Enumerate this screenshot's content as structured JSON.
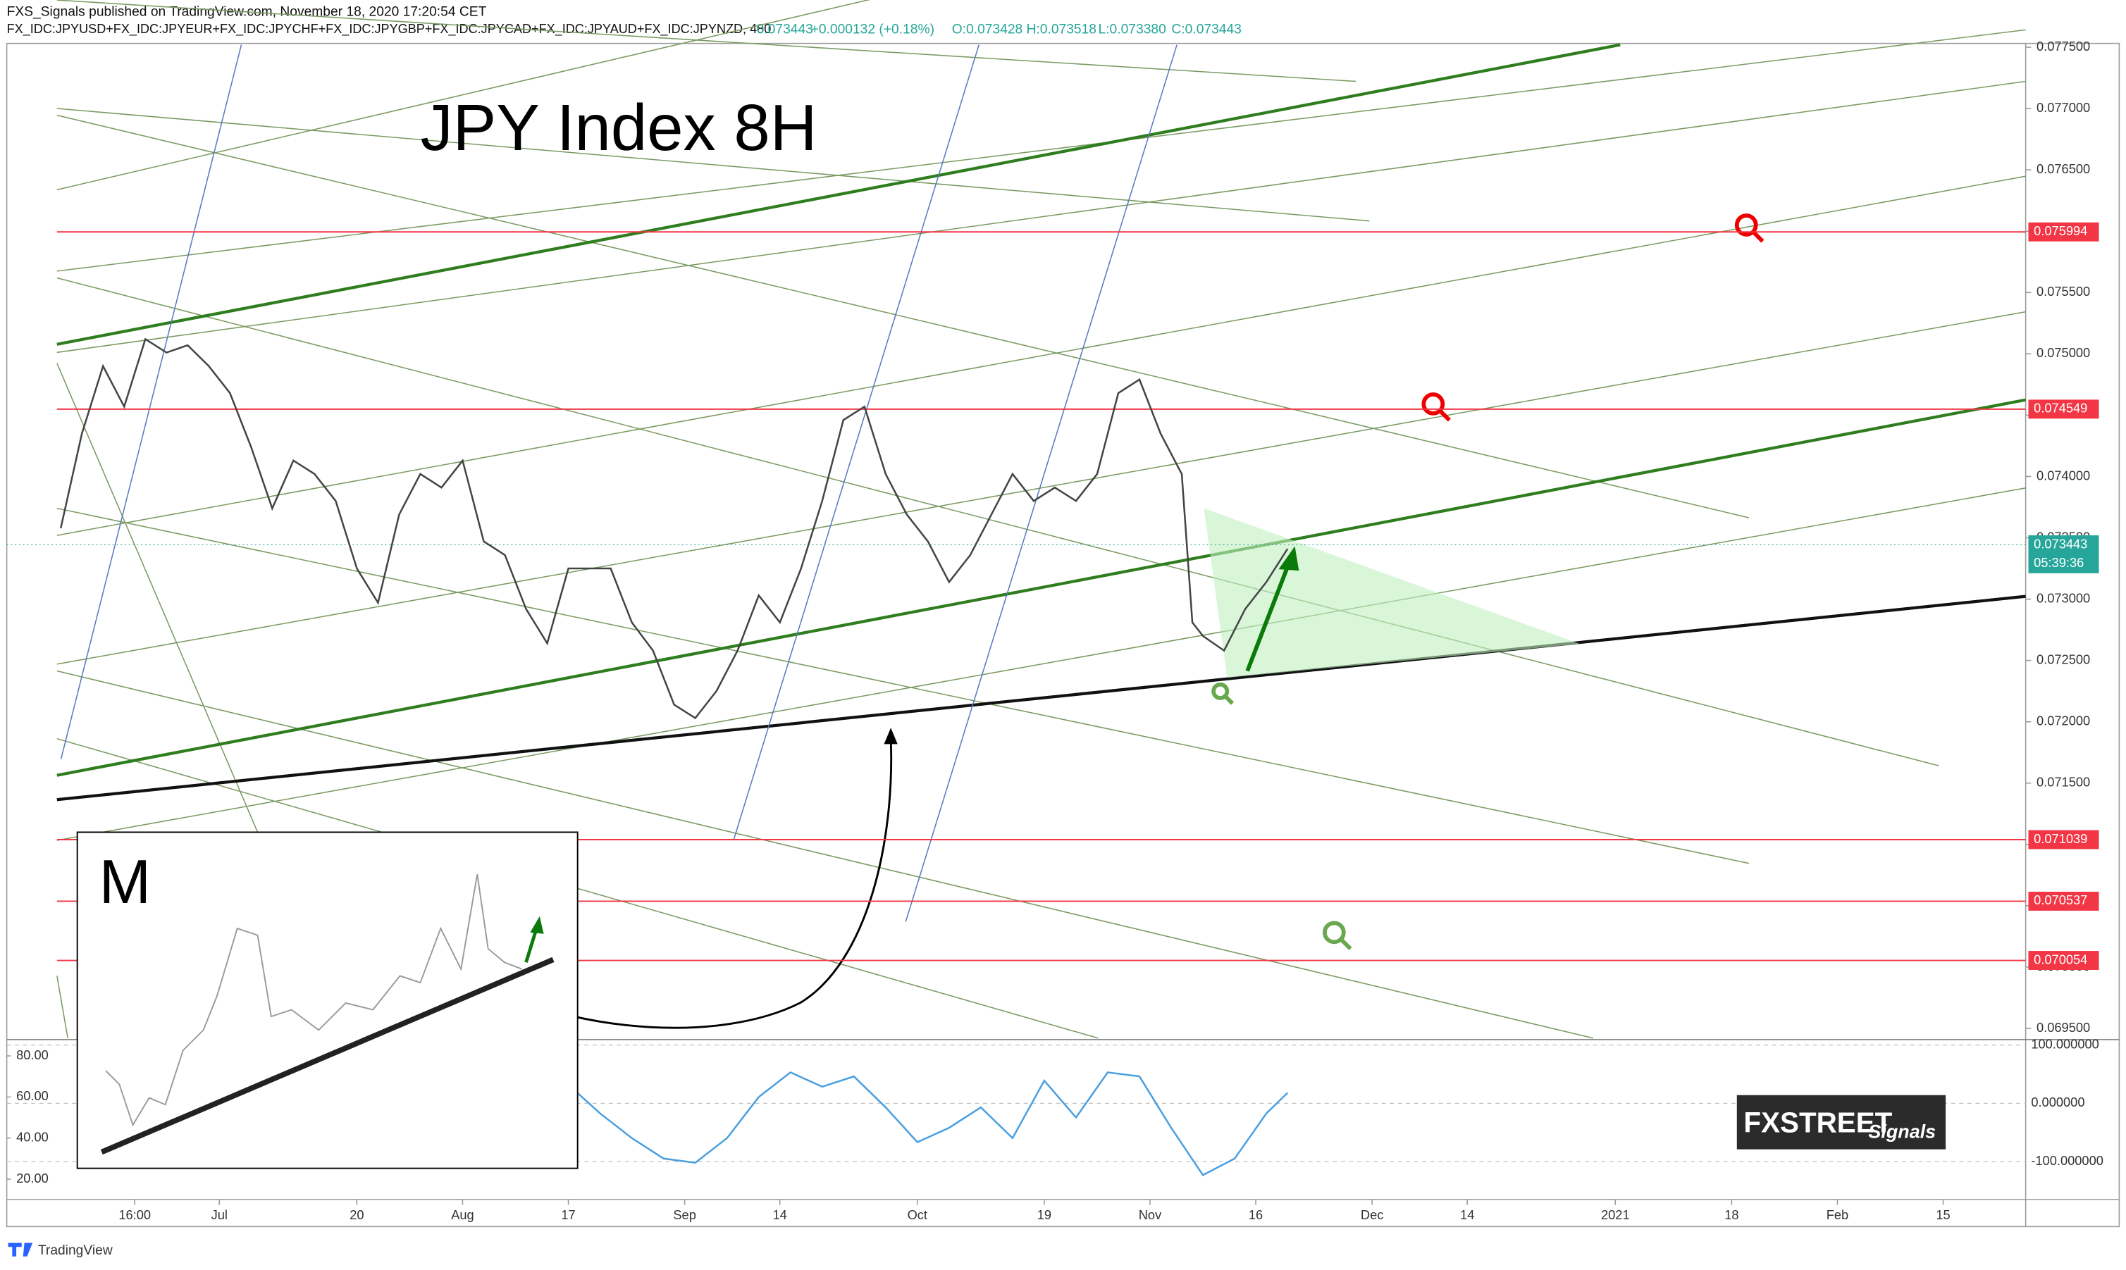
{
  "header": {
    "publisher": "FXS_Signals published on TradingView.com, November 18, 2020 17:20:54 CET"
  },
  "legend": {
    "symbol": "FX_IDC:JPYUSD+FX_IDC:JPYEUR+FX_IDC:JPYCHF+FX_IDC:JPYGBP+FX_IDC:JPYCAD+FX_IDC:JPYAUD+FX_IDC:JPYNZD, 480",
    "last": "0.073443",
    "change": "+0.000132 (+0.18%)",
    "open": "O:0.073428",
    "high": "H:0.073518",
    "low": "L:0.073380",
    "close": "C:0.073443"
  },
  "branding": {
    "fxstreet": "FXSTREET",
    "signals": "Signals",
    "tradingview": "TradingView"
  },
  "chart_data": [
    {
      "type": "line",
      "title": "JPY Index 8H",
      "annotation": "M",
      "color": "#444444",
      "x": [
        -15,
        -13,
        -11,
        -9,
        -7,
        -5,
        -3,
        -1,
        1,
        3,
        5,
        7,
        9,
        11,
        13,
        15,
        17,
        19,
        21,
        23,
        25,
        27,
        29,
        31,
        33,
        35,
        37,
        39,
        41,
        43,
        45,
        47,
        49,
        51,
        53,
        55,
        57,
        59,
        61,
        63,
        65,
        67,
        69,
        71,
        73,
        75,
        77,
        79,
        81,
        83,
        85,
        87,
        89,
        91,
        92,
        93,
        95,
        97,
        99,
        101
      ],
      "values": [
        0.073578,
        0.07435,
        0.0749,
        0.07457,
        0.07512,
        0.07501,
        0.07507,
        0.0749,
        0.07468,
        0.07424,
        0.07374,
        0.07413,
        0.07402,
        0.0738,
        0.07325,
        0.07297,
        0.07369,
        0.07402,
        0.07391,
        0.07413,
        0.07347,
        0.07336,
        0.07292,
        0.07264,
        0.07325,
        0.07325,
        0.07325,
        0.07281,
        0.07258,
        0.07214,
        0.07203,
        0.07225,
        0.07258,
        0.07303,
        0.07281,
        0.07325,
        0.0738,
        0.07446,
        0.07457,
        0.07402,
        0.07369,
        0.07347,
        0.07314,
        0.07336,
        0.07369,
        0.07402,
        0.0738,
        0.07391,
        0.0738,
        0.07402,
        0.07468,
        0.07479,
        0.07435,
        0.07402,
        0.07281,
        0.0727,
        0.07258,
        0.07292,
        0.07314,
        0.07341
      ],
      "xlim": [
        -20.1,
        170.8
      ],
      "xticks": [
        {
          "value": -8,
          "label": "16:00"
        },
        {
          "value": 0,
          "label": "Jul"
        },
        {
          "value": 13,
          "label": "20"
        },
        {
          "value": 23,
          "label": "Aug"
        },
        {
          "value": 33,
          "label": "17"
        },
        {
          "value": 44,
          "label": "Sep"
        },
        {
          "value": 53,
          "label": "14"
        },
        {
          "value": 66,
          "label": "Oct"
        },
        {
          "value": 78,
          "label": "19"
        },
        {
          "value": 88,
          "label": "Nov"
        },
        {
          "value": 98,
          "label": "16"
        },
        {
          "value": 109,
          "label": "Dec"
        },
        {
          "value": 118,
          "label": "14"
        },
        {
          "value": 132,
          "label": "2021"
        },
        {
          "value": 143,
          "label": "18"
        },
        {
          "value": 153,
          "label": "Feb"
        },
        {
          "value": 163,
          "label": "15"
        }
      ],
      "ylim": [
        0.06942,
        0.07752
      ],
      "yticks": [
        {
          "value": 0.0695,
          "label": "0.069500"
        },
        {
          "value": 0.07,
          "label": "0.070000"
        },
        {
          "value": 0.0705,
          "label": "0.070500"
        },
        {
          "value": 0.071,
          "label": "0.071000"
        },
        {
          "value": 0.0715,
          "label": "0.071500"
        },
        {
          "value": 0.072,
          "label": "0.072000"
        },
        {
          "value": 0.0725,
          "label": "0.072500"
        },
        {
          "value": 0.073,
          "label": "0.073000"
        },
        {
          "value": 0.0735,
          "label": "0.073500"
        },
        {
          "value": 0.074,
          "label": "0.074000"
        },
        {
          "value": 0.0745,
          "label": "0.074500"
        },
        {
          "value": 0.075,
          "label": "0.075000"
        },
        {
          "value": 0.0755,
          "label": "0.075500"
        },
        {
          "value": 0.076,
          "label": "0.076000"
        },
        {
          "value": 0.0765,
          "label": "0.076500"
        },
        {
          "value": 0.077,
          "label": "0.077000"
        },
        {
          "value": 0.0775,
          "label": "0.077500"
        }
      ],
      "levels": [
        0.075994,
        0.074549,
        0.071039,
        0.070537,
        0.070054
      ],
      "level_color": "#f23645",
      "last_price": 0.073443,
      "last_color": "#26a69a",
      "countdown": "05:39:36"
    },
    {
      "type": "line",
      "color": "#4a9fe0",
      "x": [
        33,
        36,
        39,
        42,
        45,
        48,
        51,
        54,
        57,
        60,
        63,
        66,
        69,
        72,
        75,
        78,
        81,
        84,
        87,
        90,
        93,
        96,
        99,
        101
      ],
      "values": [
        66,
        52,
        40,
        30,
        28,
        40,
        60,
        72,
        65,
        70,
        55,
        38,
        45,
        55,
        40,
        68,
        50,
        72,
        70,
        45,
        22,
        30,
        52,
        62
      ],
      "xlim": [
        -20.1,
        170.8
      ],
      "ylim": [
        10.1,
        87.3
      ],
      "yticks": [
        {
          "value": 80,
          "label": "80.00"
        },
        {
          "value": 60,
          "label": "60.00"
        },
        {
          "value": 40,
          "label": "40.00"
        },
        {
          "value": 20,
          "label": "20.00"
        }
      ],
      "y2lim": [
        -165,
        107
      ],
      "y2ticks": [
        {
          "value": 100,
          "label": "100.000000"
        },
        {
          "value": 0,
          "label": "0.000000"
        },
        {
          "value": -100,
          "label": "-100.000000"
        }
      ]
    }
  ]
}
